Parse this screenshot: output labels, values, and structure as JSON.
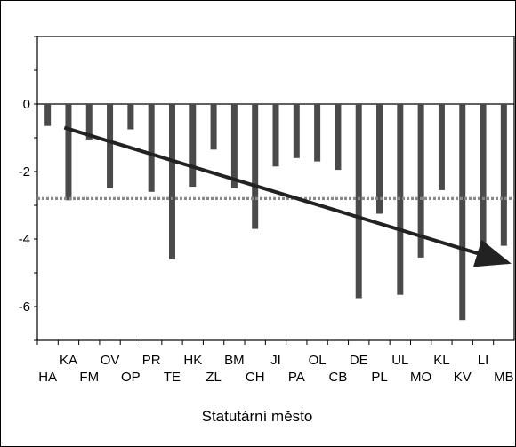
{
  "chart_data": {
    "type": "bar",
    "xlabel": "Statutární město",
    "ylabel": "",
    "ylim": [
      -7,
      2
    ],
    "yticks": [
      0,
      -2,
      -4,
      -6
    ],
    "grid": false,
    "bar_color": "#4a4a4a",
    "categories": [
      "HA",
      "KA",
      "FM",
      "OV",
      "OP",
      "PR",
      "TE",
      "HK",
      "ZL",
      "BM",
      "CH",
      "JI",
      "PA",
      "OL",
      "CB",
      "DE",
      "PL",
      "UL",
      "MO",
      "KL",
      "KV",
      "LI",
      "MB"
    ],
    "values": [
      -0.65,
      -2.85,
      -1.05,
      -2.5,
      -0.75,
      -2.6,
      -4.6,
      -2.45,
      -1.35,
      -2.5,
      -3.7,
      -1.85,
      -1.6,
      -1.7,
      -1.95,
      -5.75,
      -3.25,
      -5.65,
      -4.55,
      -2.55,
      -6.4,
      -4.15,
      -4.2
    ],
    "reference_line": {
      "y": -2.8,
      "style": "dotted",
      "color": "#888888"
    },
    "trend_arrow": {
      "from": {
        "x": 1.8,
        "y": -0.7
      },
      "to": {
        "x": 23.2,
        "y": -4.7
      },
      "color": "#222222"
    }
  }
}
